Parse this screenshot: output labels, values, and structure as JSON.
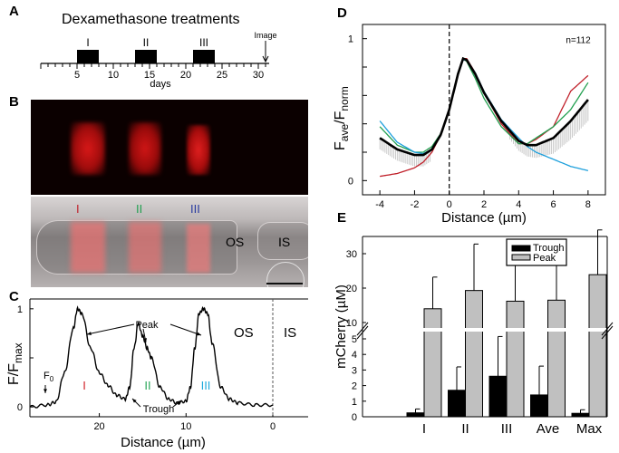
{
  "panels": {
    "A": {
      "letter": "A",
      "title": "Dexamethasone treatments",
      "axis_label": "days",
      "ticks": [
        "5",
        "10",
        "15",
        "20",
        "25",
        "30"
      ],
      "image_label": "Image",
      "treatments": [
        {
          "label": "I",
          "start": 5,
          "end": 8
        },
        {
          "label": "II",
          "start": 13,
          "end": 16
        },
        {
          "label": "III",
          "start": 21,
          "end": 24
        }
      ],
      "image_day": 31
    },
    "B": {
      "letter": "B",
      "band_labels": [
        {
          "label": "I",
          "color": "#c0202a"
        },
        {
          "label": "II",
          "color": "#22a050"
        },
        {
          "label": "III",
          "color": "#2a3ca0"
        }
      ],
      "os_label": "OS",
      "is_label": "IS"
    },
    "C": {
      "letter": "C",
      "ylabel_main": "F/F",
      "ylabel_sub": "max",
      "xlabel": "Distance (µm)",
      "xticks": [
        "20",
        "10",
        "0"
      ],
      "yticks": [
        "0",
        "1"
      ],
      "peak_label": "Peak",
      "trough_label": "Trough",
      "f0_label": "F",
      "f0_sub": "0",
      "os_label": "OS",
      "is_label": "IS",
      "band_labels": [
        {
          "label": "I",
          "color": "#d2232a"
        },
        {
          "label": "II",
          "color": "#2aa65a"
        },
        {
          "label": "III",
          "color": "#1eaadc"
        }
      ]
    },
    "D": {
      "letter": "D"
    },
    "E": {
      "letter": "E"
    }
  },
  "chart_data": [
    {
      "id": "C",
      "type": "line",
      "title": "",
      "xlabel": "Distance (µm)",
      "ylabel": "F/Fmax",
      "xlim": [
        28,
        0
      ],
      "ylim": [
        -0.1,
        1.1
      ],
      "x": [
        28,
        26,
        25,
        24,
        23,
        22.5,
        22,
        21,
        20,
        19,
        18,
        17,
        16.5,
        16,
        15.5,
        15,
        14.5,
        14,
        13,
        12,
        11,
        10,
        9.5,
        9,
        8.5,
        8,
        7.5,
        7,
        6,
        5,
        4,
        2,
        0
      ],
      "series": [
        {
          "name": "F/Fmax",
          "values": [
            0,
            0.02,
            0.05,
            0.35,
            0.8,
            1.0,
            0.95,
            0.6,
            0.35,
            0.22,
            0.12,
            0.08,
            0.2,
            0.6,
            0.85,
            0.72,
            0.6,
            0.5,
            0.2,
            0.08,
            0.04,
            0.06,
            0.2,
            0.6,
            0.95,
            1.0,
            0.95,
            0.65,
            0.2,
            0.08,
            0.04,
            0.02,
            0.02
          ]
        }
      ],
      "annotations": [
        "Peak",
        "Trough",
        "F0",
        "OS",
        "IS",
        "I",
        "II",
        "III"
      ]
    },
    {
      "id": "D",
      "type": "line",
      "title": "",
      "xlabel": "Distance (µm)",
      "ylabel": "Fave/Fnorm",
      "xlim": [
        -5,
        9
      ],
      "ylim": [
        -0.1,
        1.1
      ],
      "xticks": [
        -4,
        -2,
        0,
        2,
        4,
        6,
        8
      ],
      "yticks": [
        0,
        1
      ],
      "annotation": "n=112",
      "x": [
        -4,
        -3,
        -2,
        -1.5,
        -1,
        -0.5,
        0,
        0.5,
        0.8,
        1,
        1.5,
        2,
        3,
        4,
        4.5,
        5,
        6,
        7,
        8
      ],
      "series": [
        {
          "name": "average",
          "color": "#000000",
          "values": [
            0.3,
            0.22,
            0.18,
            0.18,
            0.22,
            0.32,
            0.5,
            0.75,
            0.86,
            0.85,
            0.75,
            0.62,
            0.42,
            0.28,
            0.25,
            0.25,
            0.3,
            0.42,
            0.57
          ]
        },
        {
          "name": "I",
          "color": "#c0202a",
          "values": [
            0.03,
            0.05,
            0.09,
            0.13,
            0.2,
            0.32,
            0.5,
            0.76,
            0.86,
            0.86,
            0.76,
            0.62,
            0.4,
            0.26,
            0.26,
            0.29,
            0.38,
            0.63,
            0.74
          ]
        },
        {
          "name": "II",
          "color": "#22a050",
          "values": [
            0.38,
            0.25,
            0.2,
            0.2,
            0.24,
            0.33,
            0.5,
            0.76,
            0.86,
            0.84,
            0.72,
            0.58,
            0.38,
            0.26,
            0.26,
            0.3,
            0.38,
            0.5,
            0.69
          ]
        },
        {
          "name": "III",
          "color": "#1ea0dc",
          "values": [
            0.42,
            0.27,
            0.2,
            0.19,
            0.22,
            0.32,
            0.5,
            0.76,
            0.85,
            0.85,
            0.76,
            0.63,
            0.43,
            0.3,
            0.24,
            0.2,
            0.15,
            0.1,
            0.07
          ]
        }
      ],
      "error_band_color": "#bdbdbd"
    },
    {
      "id": "E",
      "type": "bar",
      "title": "",
      "xlabel": "",
      "ylabel": "mCherry (µM)",
      "categories": [
        "I",
        "II",
        "III",
        "Ave",
        "Max"
      ],
      "broken_axis": {
        "lower": [
          0,
          5
        ],
        "upper": [
          10,
          35
        ]
      },
      "yticks_lower": [
        0,
        1,
        2,
        3,
        4,
        5
      ],
      "yticks_upper": [
        10,
        20,
        30
      ],
      "legend": {
        "position": "top-right",
        "entries": [
          "Trough",
          "Peak"
        ]
      },
      "series": [
        {
          "name": "Trough",
          "color": "#000000",
          "values": [
            0.25,
            1.7,
            2.6,
            1.4,
            0.22
          ],
          "errors": [
            0.25,
            1.5,
            2.55,
            1.85,
            0.23
          ]
        },
        {
          "name": "Peak",
          "color": "#c0c0c0",
          "values": [
            14,
            19.3,
            16.2,
            16.5,
            23.9
          ],
          "errors": [
            9.2,
            13.5,
            12.0,
            12.0,
            13.0
          ]
        }
      ]
    }
  ]
}
